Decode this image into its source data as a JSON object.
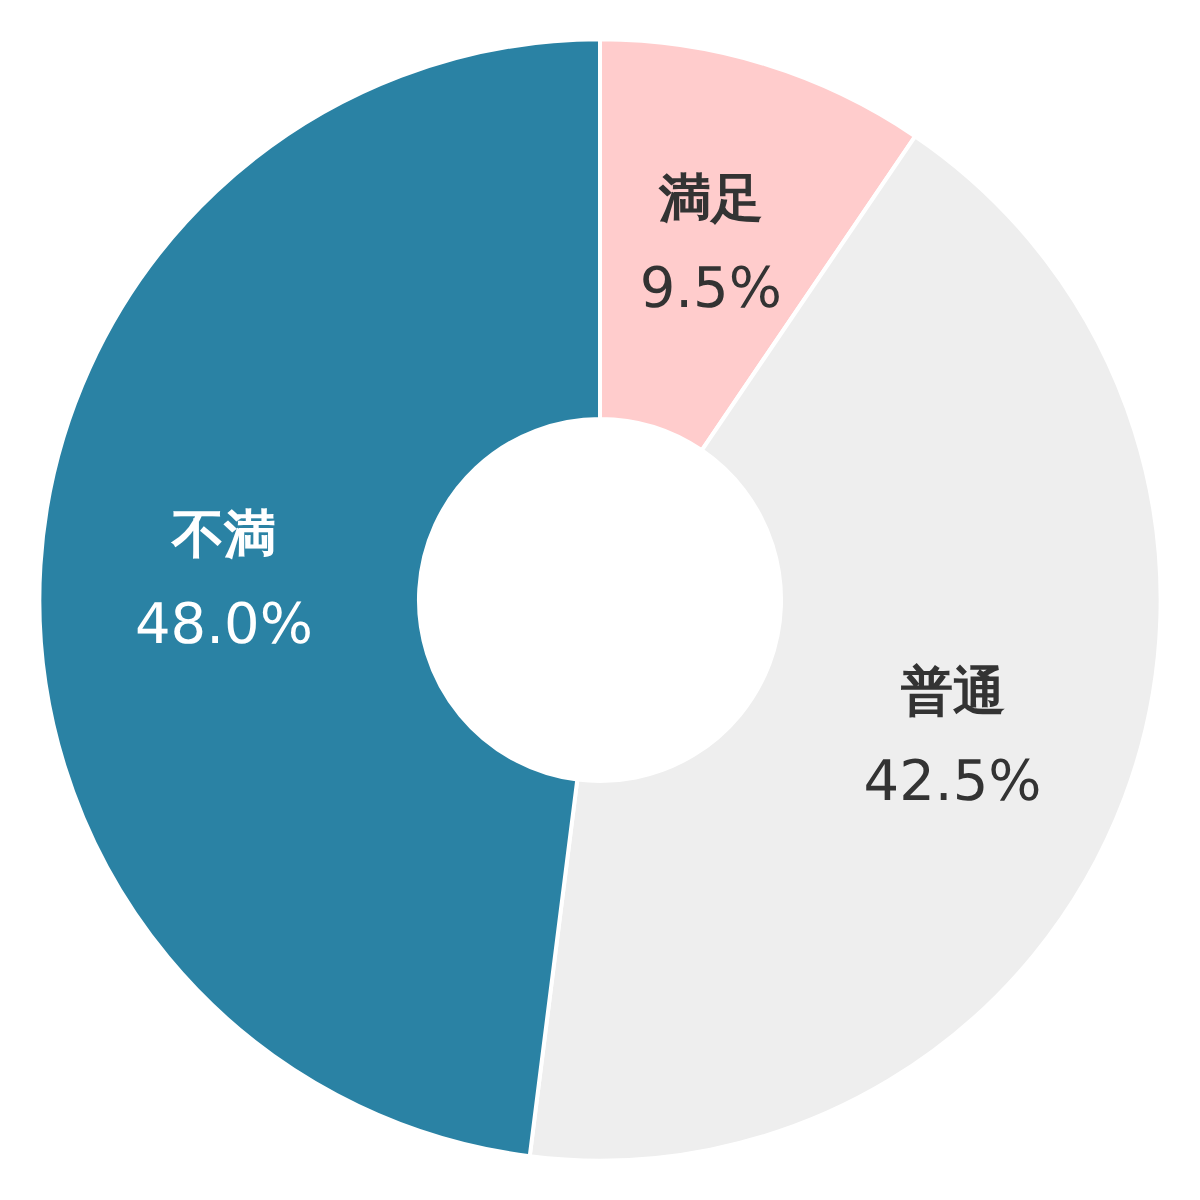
{
  "chart_data": {
    "type": "donut",
    "categories": [
      "満足",
      "普通",
      "不満"
    ],
    "values": [
      9.5,
      42.5,
      48.0
    ],
    "colors": [
      "#ffcccc",
      "#eeeeee",
      "#2a82a4"
    ],
    "value_labels": [
      "9.5%",
      "42.5%",
      "48.0%"
    ],
    "legend": false
  }
}
